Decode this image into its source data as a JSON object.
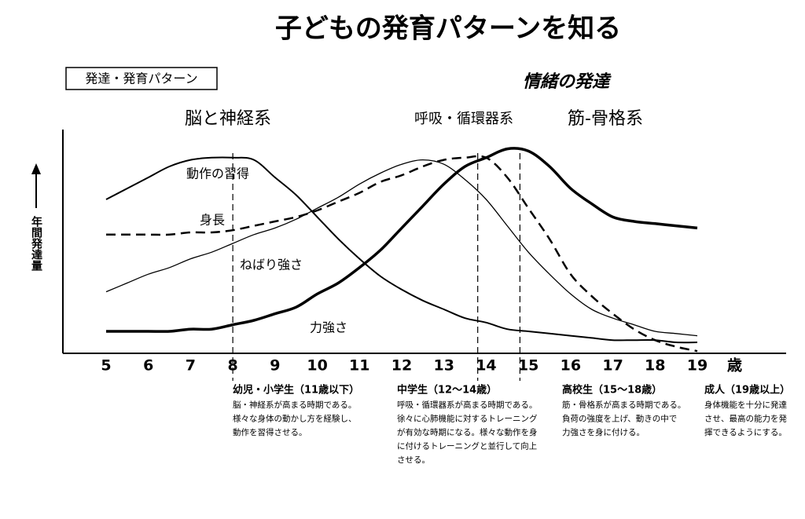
{
  "chart_data": {
    "type": "line",
    "title": "子どもの発育パターンを知る",
    "box_label": "発達・発育パターン",
    "ylabel": "年間発達量",
    "xunit": "歳",
    "groups": [
      "脳と神経系",
      "呼吸・循環器系",
      "筋-骨格系",
      "情緒の発達"
    ],
    "x": [
      5,
      5.5,
      6,
      6.5,
      7,
      7.5,
      8,
      8.5,
      9,
      9.5,
      10,
      10.5,
      11,
      11.5,
      12,
      12.5,
      13,
      13.5,
      14,
      14.5,
      15,
      15.5,
      16,
      16.5,
      17,
      17.5,
      18,
      18.5,
      19
    ],
    "xlim": [
      5,
      19
    ],
    "xticks": [
      5,
      6,
      7,
      8,
      9,
      10,
      11,
      12,
      13,
      14,
      15,
      16,
      17,
      18,
      19
    ],
    "ylim": [
      0,
      100
    ],
    "reference_lines": [
      8,
      13.8,
      14.8
    ],
    "series": [
      {
        "name": "動作の習得",
        "color": "#000000",
        "width": 2,
        "dash": false,
        "values": [
          70,
          75,
          80,
          85,
          88,
          89,
          89,
          88,
          80,
          72,
          62,
          52,
          43,
          35,
          29,
          24,
          20,
          16,
          14,
          11,
          10,
          9,
          8,
          7,
          6,
          6,
          6,
          5,
          5
        ]
      },
      {
        "name": "身長",
        "color": "#000000",
        "width": 2.5,
        "dash": true,
        "values": [
          54,
          54,
          54,
          54,
          55,
          55,
          56,
          58,
          60,
          62,
          65,
          69,
          73,
          78,
          81,
          85,
          88,
          89,
          89,
          80,
          66,
          52,
          36,
          26,
          18,
          11,
          6,
          3,
          1
        ]
      },
      {
        "name": "ねばり強さ",
        "color": "#000000",
        "width": 1.3,
        "dash": false,
        "values": [
          28,
          32,
          36,
          39,
          43,
          46,
          50,
          54,
          57,
          61,
          66,
          71,
          77,
          82,
          86,
          88,
          86,
          79,
          70,
          58,
          46,
          36,
          27,
          20,
          16,
          13,
          10,
          9,
          8
        ]
      },
      {
        "name": "力強さ",
        "color": "#000000",
        "width": 3.5,
        "dash": false,
        "values": [
          10,
          10,
          10,
          10,
          11,
          11,
          13,
          15,
          18,
          21,
          27,
          32,
          39,
          47,
          57,
          67,
          77,
          85,
          89,
          93,
          92,
          85,
          75,
          68,
          62,
          60,
          59,
          58,
          57
        ]
      }
    ],
    "stages": [
      {
        "title": "幼児・小学生（11歳以下）",
        "lines": [
          "脳・神経系が高まる時期である。",
          "様々な身体の動かし方を経験し、",
          "動作を習得させる。"
        ]
      },
      {
        "title": "中学生（12〜14歳）",
        "lines": [
          "呼吸・循環器系が高まる時期である。",
          "徐々に心肺機能に対するトレーニング",
          "が有効な時期になる。様々な動作を身",
          "に付けるトレーニングと並行して向上",
          "させる。"
        ]
      },
      {
        "title": "高校生（15〜18歳）",
        "lines": [
          "筋・骨格系が高まる時期である。",
          "負荷の強度を上げ、動きの中で",
          "力強さを身に付ける。"
        ]
      },
      {
        "title": "成人（19歳以上）",
        "lines": [
          "身体機能を十分に発達",
          "させ、最高の能力を発",
          "揮できるようにする。"
        ]
      }
    ]
  }
}
